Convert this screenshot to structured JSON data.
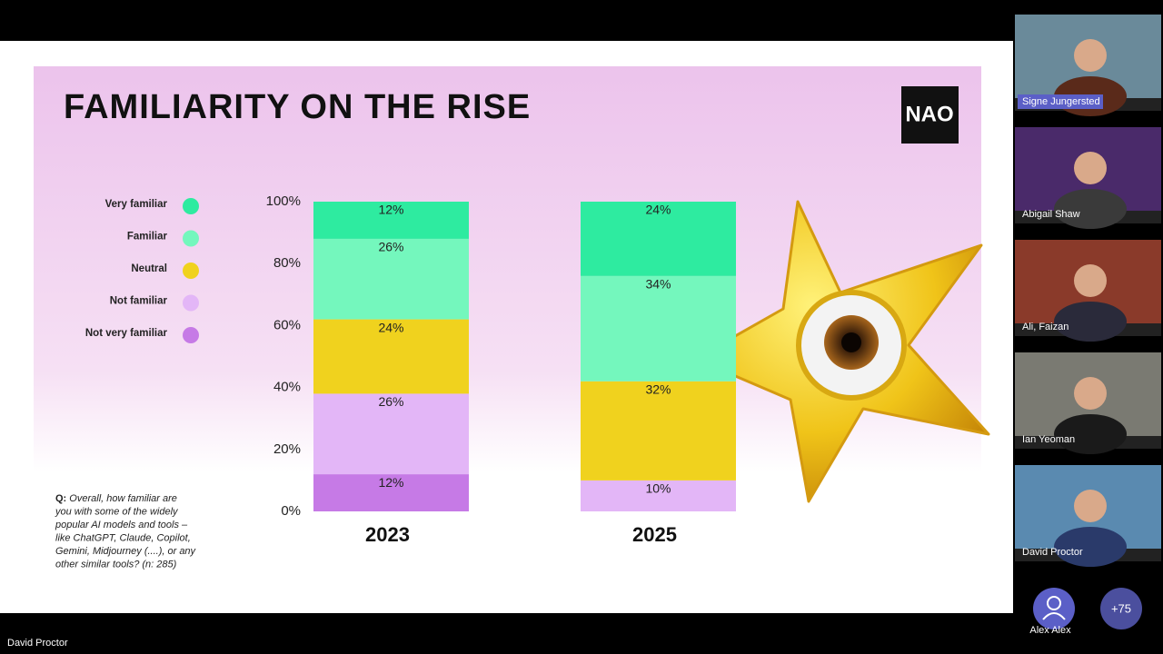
{
  "chart_data": {
    "type": "bar",
    "stacked": true,
    "title": "FAMILIARITY ON THE RISE",
    "categories": [
      "2023",
      "2025"
    ],
    "series": [
      {
        "name": "Very familiar",
        "color": "#2eeba0",
        "values": [
          12,
          24
        ],
        "value_labels": [
          "12%",
          "24%"
        ]
      },
      {
        "name": "Familiar",
        "color": "#74f7bd",
        "values": [
          26,
          34
        ],
        "value_labels": [
          "26%",
          "34%"
        ]
      },
      {
        "name": "Neutral",
        "color": "#f0d21e",
        "values": [
          24,
          32
        ],
        "value_labels": [
          "24%",
          "32%"
        ]
      },
      {
        "name": "Not familiar",
        "color": "#e3b6f7",
        "values": [
          26,
          10
        ],
        "value_labels": [
          "26%",
          "10%"
        ]
      },
      {
        "name": "Not very familiar",
        "color": "#c67ae6",
        "values": [
          12,
          0
        ],
        "value_labels": [
          "12%",
          null
        ]
      }
    ],
    "ylim": [
      0,
      100
    ],
    "yticks": [
      {
        "value": 0,
        "label": "0%"
      },
      {
        "value": 20,
        "label": "20%"
      },
      {
        "value": 40,
        "label": "40%"
      },
      {
        "value": 60,
        "label": "60%"
      },
      {
        "value": 80,
        "label": "80%"
      },
      {
        "value": 100,
        "label": "100%"
      }
    ],
    "grid": false,
    "legend": "left"
  },
  "slide": {
    "logo": "NAO",
    "question": {
      "prefix": "Q:",
      "lines": [
        "Overall, how familiar are",
        "you with some of the widely",
        "popular AI models and tools –",
        "like ChatGPT, Claude, Copilot,",
        "Gemini, Midjourney (....), or any",
        "other similar tools? (n: 285)"
      ]
    }
  },
  "meeting": {
    "presenter": "David Proctor",
    "participants": [
      "Signe Jungersted",
      "Abigail Shaw",
      "Ali, Faizan",
      "Ian Yeoman",
      "David Proctor"
    ],
    "attendee": "Alex Alex",
    "more": "+75"
  }
}
